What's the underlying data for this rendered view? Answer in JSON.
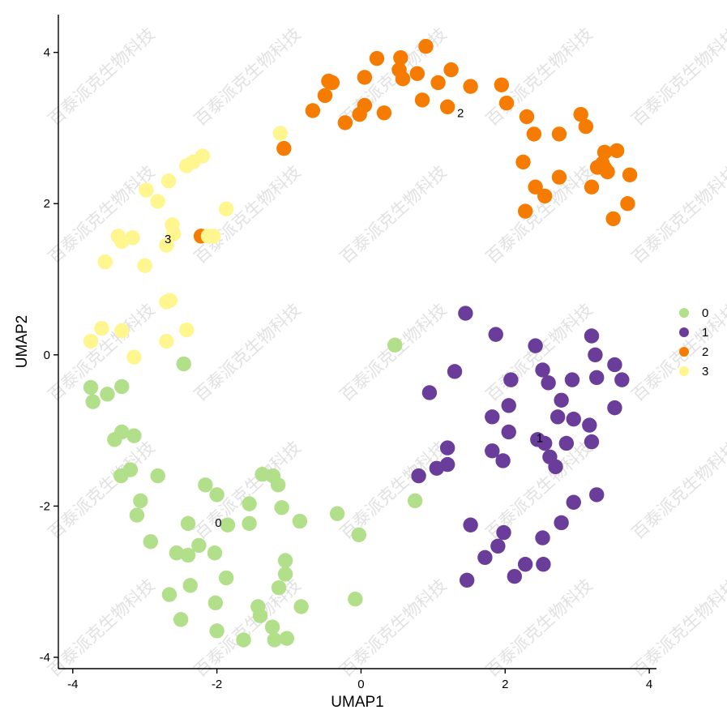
{
  "chart_data": {
    "type": "scatter",
    "xlabel": "UMAP1",
    "ylabel": "UMAP2",
    "xlim": [
      -4.2,
      4.1
    ],
    "ylim": [
      -4.15,
      4.5
    ],
    "xticks": [
      -4,
      -2,
      0,
      2,
      4
    ],
    "yticks": [
      -4,
      -2,
      0,
      2,
      4
    ],
    "grid": false,
    "legend_position": "right",
    "watermark": "百泰派克生物科技",
    "series": [
      {
        "name": "0",
        "color": "#b2df8a",
        "points": [
          [
            0.47,
            0.13
          ],
          [
            -2.46,
            -0.12
          ],
          [
            -3.75,
            -0.43
          ],
          [
            -3.72,
            -0.62
          ],
          [
            -3.52,
            -0.52
          ],
          [
            -3.32,
            -0.42
          ],
          [
            -3.32,
            -1.02
          ],
          [
            -3.42,
            -1.12
          ],
          [
            -3.15,
            -1.07
          ],
          [
            -3.2,
            -1.52
          ],
          [
            -3.33,
            -1.6
          ],
          [
            -2.82,
            -1.6
          ],
          [
            -3.06,
            -1.93
          ],
          [
            -3.11,
            -2.12
          ],
          [
            -2.92,
            -2.47
          ],
          [
            -2.16,
            -1.72
          ],
          [
            -2.0,
            -1.85
          ],
          [
            -1.85,
            -2.25
          ],
          [
            -1.55,
            -1.97
          ],
          [
            -1.37,
            -1.58
          ],
          [
            -1.22,
            -1.6
          ],
          [
            -1.15,
            -1.72
          ],
          [
            -1.1,
            -2.02
          ],
          [
            -0.85,
            -2.2
          ],
          [
            -2.4,
            -2.23
          ],
          [
            -1.55,
            -2.23
          ],
          [
            -2.25,
            -2.52
          ],
          [
            -2.56,
            -2.62
          ],
          [
            -2.4,
            -2.65
          ],
          [
            -2.03,
            -2.62
          ],
          [
            -1.05,
            -2.72
          ],
          [
            -1.05,
            -2.9
          ],
          [
            -2.37,
            -3.05
          ],
          [
            -1.87,
            -2.95
          ],
          [
            -2.66,
            -3.17
          ],
          [
            -2.02,
            -3.28
          ],
          [
            -1.14,
            -3.08
          ],
          [
            -1.43,
            -3.33
          ],
          [
            -1.4,
            -3.45
          ],
          [
            -0.83,
            -3.33
          ],
          [
            -2.5,
            -3.5
          ],
          [
            -2.0,
            -3.65
          ],
          [
            -1.63,
            -3.77
          ],
          [
            -1.23,
            -3.6
          ],
          [
            -1.2,
            -3.77
          ],
          [
            -1.03,
            -3.75
          ],
          [
            -0.33,
            -2.1
          ],
          [
            -0.03,
            -2.38
          ],
          [
            -0.08,
            -3.23
          ],
          [
            0.75,
            -1.93
          ]
        ]
      },
      {
        "name": "1",
        "color": "#6a3d9a",
        "points": [
          [
            1.45,
            0.55
          ],
          [
            1.87,
            0.27
          ],
          [
            2.42,
            0.12
          ],
          [
            3.2,
            0.25
          ],
          [
            3.25,
            0.0
          ],
          [
            3.52,
            -0.13
          ],
          [
            1.3,
            -0.22
          ],
          [
            2.52,
            -0.2
          ],
          [
            2.6,
            -0.37
          ],
          [
            2.93,
            -0.33
          ],
          [
            3.27,
            -0.3
          ],
          [
            3.62,
            -0.33
          ],
          [
            2.08,
            -0.33
          ],
          [
            0.95,
            -0.5
          ],
          [
            2.78,
            -0.6
          ],
          [
            2.05,
            -0.67
          ],
          [
            3.52,
            -0.7
          ],
          [
            1.82,
            -0.82
          ],
          [
            2.73,
            -0.82
          ],
          [
            2.95,
            -0.85
          ],
          [
            3.17,
            -0.93
          ],
          [
            2.05,
            -1.02
          ],
          [
            2.45,
            -1.12
          ],
          [
            2.55,
            -1.17
          ],
          [
            2.85,
            -1.17
          ],
          [
            3.2,
            -1.15
          ],
          [
            1.2,
            -1.23
          ],
          [
            1.82,
            -1.27
          ],
          [
            1.97,
            -1.4
          ],
          [
            2.62,
            -1.35
          ],
          [
            2.7,
            -1.48
          ],
          [
            1.05,
            -1.5
          ],
          [
            1.2,
            -1.45
          ],
          [
            0.8,
            -1.6
          ],
          [
            2.95,
            -1.95
          ],
          [
            3.27,
            -1.85
          ],
          [
            1.52,
            -2.25
          ],
          [
            2.78,
            -2.22
          ],
          [
            1.98,
            -2.35
          ],
          [
            2.52,
            -2.42
          ],
          [
            1.9,
            -2.53
          ],
          [
            1.72,
            -2.68
          ],
          [
            2.28,
            -2.77
          ],
          [
            2.53,
            -2.77
          ],
          [
            2.13,
            -2.93
          ],
          [
            1.47,
            -2.98
          ]
        ]
      },
      {
        "name": "2",
        "color": "#f57c00",
        "points": [
          [
            0.9,
            4.08
          ],
          [
            0.22,
            3.92
          ],
          [
            0.55,
            3.93
          ],
          [
            0.53,
            3.77
          ],
          [
            1.25,
            3.77
          ],
          [
            0.05,
            3.67
          ],
          [
            0.58,
            3.65
          ],
          [
            0.78,
            3.72
          ],
          [
            1.07,
            3.6
          ],
          [
            1.52,
            3.55
          ],
          [
            1.95,
            3.57
          ],
          [
            -0.4,
            3.6
          ],
          [
            -0.45,
            3.62
          ],
          [
            -0.5,
            3.43
          ],
          [
            0.85,
            3.37
          ],
          [
            2.02,
            3.33
          ],
          [
            0.05,
            3.3
          ],
          [
            1.2,
            3.28
          ],
          [
            -0.67,
            3.23
          ],
          [
            0.32,
            3.2
          ],
          [
            -0.02,
            3.18
          ],
          [
            -0.22,
            3.07
          ],
          [
            2.3,
            3.15
          ],
          [
            3.05,
            3.18
          ],
          [
            3.12,
            3.02
          ],
          [
            2.4,
            2.92
          ],
          [
            2.75,
            2.92
          ],
          [
            -1.07,
            2.73
          ],
          [
            3.38,
            2.68
          ],
          [
            3.55,
            2.7
          ],
          [
            2.25,
            2.55
          ],
          [
            3.35,
            2.53
          ],
          [
            3.38,
            2.47
          ],
          [
            3.28,
            2.48
          ],
          [
            3.42,
            2.42
          ],
          [
            3.73,
            2.38
          ],
          [
            2.75,
            2.35
          ],
          [
            2.42,
            2.22
          ],
          [
            3.2,
            2.22
          ],
          [
            2.55,
            2.1
          ],
          [
            3.7,
            2.0
          ],
          [
            2.28,
            1.9
          ],
          [
            3.5,
            1.8
          ],
          [
            -2.22,
            1.57
          ]
        ]
      },
      {
        "name": "3",
        "color": "#fff68f",
        "points": [
          [
            -1.12,
            2.93
          ],
          [
            -2.2,
            2.63
          ],
          [
            -2.42,
            2.5
          ],
          [
            -2.33,
            2.55
          ],
          [
            -2.67,
            2.3
          ],
          [
            -2.98,
            2.18
          ],
          [
            -2.82,
            2.03
          ],
          [
            -1.87,
            1.93
          ],
          [
            -2.62,
            1.72
          ],
          [
            -2.6,
            1.6
          ],
          [
            -3.37,
            1.57
          ],
          [
            -3.17,
            1.55
          ],
          [
            -3.32,
            1.5
          ],
          [
            -2.7,
            1.45
          ],
          [
            -2.05,
            1.57
          ],
          [
            -2.12,
            1.57
          ],
          [
            -3.55,
            1.23
          ],
          [
            -3.0,
            1.18
          ],
          [
            -2.65,
            0.72
          ],
          [
            -2.7,
            0.7
          ],
          [
            -3.6,
            0.35
          ],
          [
            -3.32,
            0.32
          ],
          [
            -2.42,
            0.33
          ],
          [
            -2.7,
            0.18
          ],
          [
            -3.75,
            0.18
          ],
          [
            -3.15,
            -0.03
          ]
        ]
      }
    ],
    "cluster_labels": [
      {
        "text": "0",
        "x": -1.98,
        "y": -2.22
      },
      {
        "text": "1",
        "x": 2.48,
        "y": -1.1
      },
      {
        "text": "2",
        "x": 1.38,
        "y": 3.2
      },
      {
        "text": "3",
        "x": -2.68,
        "y": 1.53
      }
    ]
  }
}
